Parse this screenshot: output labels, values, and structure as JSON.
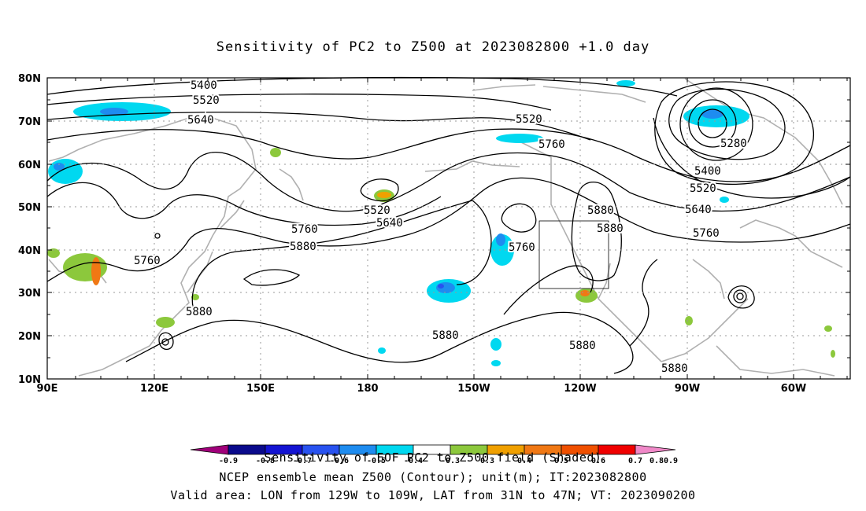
{
  "title": "Sensitivity of PC2 to Z500 at 2023082800 +1.0 day",
  "axes": {
    "lat_labels": [
      "80N",
      "70N",
      "60N",
      "50N",
      "40N",
      "30N",
      "20N",
      "10N"
    ],
    "lon_labels": [
      "90E",
      "120E",
      "150E",
      "180",
      "150W",
      "120W",
      "90W",
      "60W"
    ]
  },
  "contour_labels": [
    "5400",
    "5520",
    "5640",
    "5520",
    "5760",
    "5280",
    "5400",
    "5520",
    "5640",
    "5760",
    "5880",
    "5880",
    "5520",
    "5640",
    "5760",
    "5880",
    "5760",
    "5760",
    "5880",
    "5880",
    "5880",
    "5880",
    "5880"
  ],
  "colorbar": {
    "ticks": [
      "-0.9",
      "-0.8",
      "-0.7",
      "-0.6",
      "-0.5",
      "-0.4",
      "-0.3",
      "0.3",
      "0.4",
      "0.5",
      "0.6",
      "0.7",
      "0.8",
      "0.9"
    ],
    "colors": [
      "#a0007a",
      "#0a0a8c",
      "#1414d2",
      "#2852f0",
      "#1e8cf0",
      "#1ec0f0",
      "#00d8f0",
      "#ffffff",
      "#8cc83c",
      "#f0a000",
      "#f07814",
      "#f05000",
      "#f00000",
      "#f088c8"
    ]
  },
  "footer": {
    "line1": "Sensitivity of EOF PC2 to Z500 field (Shaded)",
    "line2": "NCEP ensemble mean Z500 (Contour); unit(m); IT:2023082800",
    "line3": "Valid area: LON from 129W to 109W, LAT from 31N to 47N; VT: 2023090200"
  }
}
